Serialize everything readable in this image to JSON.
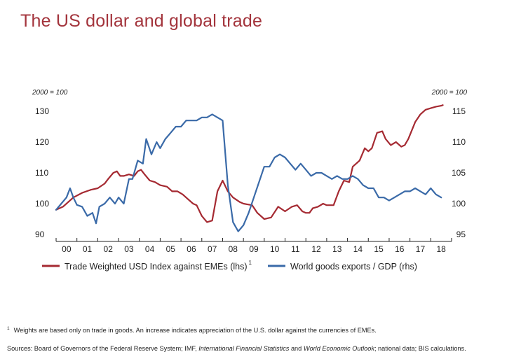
{
  "title": "The US dollar and global trade",
  "chart_data": {
    "type": "line",
    "left_unit": "2000 = 100",
    "right_unit": "2000 = 100",
    "y_left": {
      "min": 90,
      "max": 130,
      "ticks": [
        90,
        100,
        110,
        120,
        130
      ]
    },
    "y_right": {
      "min": 95,
      "max": 115,
      "ticks": [
        95,
        100,
        105,
        110,
        115
      ]
    },
    "x_range": [
      2000.0,
      2019.0
    ],
    "x_ticks": [
      "00",
      "01",
      "02",
      "03",
      "04",
      "05",
      "06",
      "07",
      "08",
      "09",
      "10",
      "11",
      "12",
      "13",
      "14",
      "15",
      "16",
      "17",
      "18"
    ],
    "series": [
      {
        "name": "Trade Weighted USD Index against EMEs (lhs)",
        "superscript": "1",
        "axis": "left",
        "color": "#a52a32",
        "x": [
          2000.0,
          2000.33,
          2000.58,
          2000.83,
          2001.25,
          2001.67,
          2002.0,
          2002.33,
          2002.5,
          2002.75,
          2002.92,
          2003.08,
          2003.25,
          2003.5,
          2003.75,
          2003.92,
          2004.08,
          2004.25,
          2004.5,
          2004.75,
          2005.0,
          2005.33,
          2005.58,
          2005.83,
          2006.08,
          2006.33,
          2006.58,
          2006.75,
          2007.0,
          2007.25,
          2007.5,
          2007.75,
          2008.0,
          2008.25,
          2008.5,
          2008.83,
          2009.0,
          2009.17,
          2009.42,
          2009.67,
          2010.0,
          2010.33,
          2010.67,
          2011.0,
          2011.33,
          2011.58,
          2011.83,
          2012.0,
          2012.17,
          2012.33,
          2012.58,
          2012.83,
          2013.0,
          2013.33,
          2013.58,
          2013.83,
          2014.08,
          2014.25,
          2014.58,
          2014.83,
          2015.0,
          2015.17,
          2015.42,
          2015.67,
          2015.83,
          2016.08,
          2016.33,
          2016.58,
          2016.75,
          2016.92,
          2017.25,
          2017.5,
          2017.75,
          2018.0,
          2018.25,
          2018.5,
          2018.58
        ],
        "values": [
          98.0,
          99.0,
          100.5,
          102.0,
          103.5,
          104.5,
          105.0,
          106.5,
          108.0,
          110.0,
          110.5,
          109.0,
          109.0,
          109.5,
          109.0,
          110.5,
          111.0,
          109.5,
          107.5,
          107.0,
          106.0,
          105.5,
          104.0,
          104.0,
          103.0,
          101.5,
          100.0,
          99.5,
          96.0,
          94.0,
          94.5,
          104.0,
          107.5,
          104.0,
          102.0,
          100.5,
          100.0,
          99.8,
          99.5,
          97.0,
          95.0,
          95.5,
          99.0,
          97.5,
          99.0,
          99.5,
          97.5,
          97.0,
          97.0,
          98.5,
          99.0,
          100.0,
          99.5,
          99.5,
          104.0,
          107.5,
          107.0,
          112.0,
          114.0,
          118.0,
          117.0,
          118.0,
          123.0,
          123.5,
          121.0,
          119.0,
          120.0,
          118.5,
          119.0,
          121.0,
          126.5,
          129.0,
          130.5,
          131.0,
          131.5,
          131.8,
          132.0
        ]
      },
      {
        "name": "World goods exports / GDP (rhs)",
        "superscript": "",
        "axis": "right",
        "color": "#3a6aa8",
        "x": [
          2000.0,
          2000.25,
          2000.5,
          2000.67,
          2000.83,
          2001.0,
          2001.25,
          2001.5,
          2001.75,
          2001.92,
          2002.08,
          2002.33,
          2002.58,
          2002.83,
          2003.0,
          2003.25,
          2003.5,
          2003.67,
          2003.92,
          2004.17,
          2004.33,
          2004.58,
          2004.83,
          2005.0,
          2005.25,
          2005.5,
          2005.75,
          2006.0,
          2006.25,
          2006.5,
          2006.75,
          2007.0,
          2007.25,
          2007.5,
          2007.75,
          2008.0,
          2008.25,
          2008.5,
          2008.75,
          2009.0,
          2009.25,
          2009.5,
          2009.75,
          2010.0,
          2010.25,
          2010.5,
          2010.75,
          2011.0,
          2011.25,
          2011.5,
          2011.75,
          2012.0,
          2012.25,
          2012.5,
          2012.75,
          2013.0,
          2013.25,
          2013.5,
          2013.75,
          2014.0,
          2014.25,
          2014.5,
          2014.75,
          2015.0,
          2015.25,
          2015.5,
          2015.75,
          2016.0,
          2016.25,
          2016.5,
          2016.75,
          2017.0,
          2017.25,
          2017.5,
          2017.75,
          2018.0,
          2018.25,
          2018.5
        ],
        "values": [
          99.0,
          100.0,
          101.0,
          102.5,
          101.0,
          99.8,
          99.5,
          98.0,
          98.5,
          96.8,
          99.5,
          100.0,
          101.0,
          100.0,
          101.0,
          100.0,
          104.0,
          104.0,
          107.0,
          106.5,
          110.5,
          108.0,
          110.0,
          109.0,
          110.5,
          111.5,
          112.5,
          112.5,
          113.5,
          113.5,
          113.5,
          114.0,
          114.0,
          114.5,
          114.0,
          113.5,
          103.0,
          97.0,
          95.5,
          96.5,
          98.5,
          101.0,
          103.5,
          106.0,
          106.0,
          107.5,
          108.0,
          107.5,
          106.5,
          105.5,
          106.5,
          105.5,
          104.5,
          105.0,
          105.0,
          104.5,
          104.0,
          104.5,
          104.0,
          104.0,
          104.5,
          104.0,
          103.0,
          102.5,
          102.5,
          101.0,
          101.0,
          100.5,
          101.0,
          101.5,
          102.0,
          102.0,
          102.5,
          102.0,
          101.5,
          102.5,
          101.5,
          101.0
        ]
      }
    ],
    "legend": [
      {
        "label": "Trade Weighted USD Index against EMEs (lhs)",
        "sup": "1",
        "color": "#a52a32"
      },
      {
        "label": "World goods exports / GDP (rhs)",
        "color": "#3a6aa8"
      }
    ]
  },
  "footnote": {
    "marker": "1",
    "text": "Weights are based only on trade in goods. An increase indicates appreciation of the U.S. dollar against the currencies of EMEs."
  },
  "sources": {
    "part1": "Sources: Board of Governors of the Federal Reserve System; IMF, ",
    "italic1": "International Financial Statistics",
    "part2": " and ",
    "italic2": "World Economic Outlook",
    "part3": "; national data; BIS calculations."
  }
}
